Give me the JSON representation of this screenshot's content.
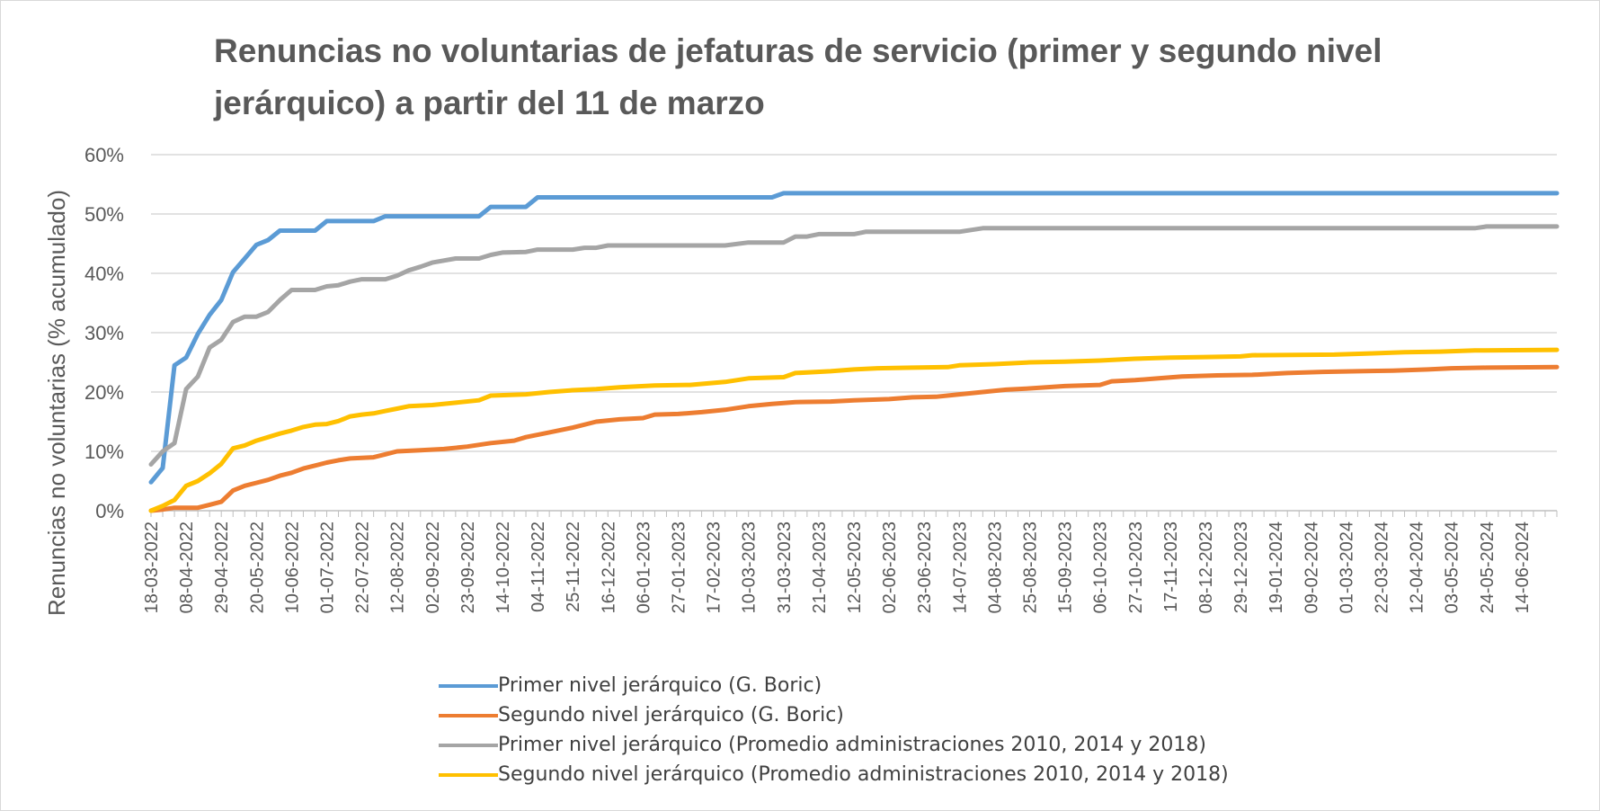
{
  "chart_data": {
    "type": "line",
    "title": "Renuncias no voluntarias de jefaturas de servicio (primer y segundo nivel jerárquico) a partir del 11 de marzo",
    "xlabel": "",
    "ylabel": "Renuncias no voluntarias (% acumulado)",
    "ylim": [
      0,
      0.6
    ],
    "y_ticks": [
      "0%",
      "10%",
      "20%",
      "30%",
      "40%",
      "50%",
      "60%"
    ],
    "x_tick_labels": [
      "18-03-2022",
      "08-04-2022",
      "29-04-2022",
      "20-05-2022",
      "10-06-2022",
      "01-07-2022",
      "22-07-2022",
      "12-08-2022",
      "02-09-2022",
      "23-09-2022",
      "14-10-2022",
      "04-11-2022",
      "25-11-2022",
      "16-12-2022",
      "06-01-2023",
      "27-01-2023",
      "17-02-2023",
      "10-03-2023",
      "31-03-2023",
      "21-04-2023",
      "12-05-2023",
      "02-06-2023",
      "23-06-2023",
      "14-07-2023",
      "04-08-2023",
      "25-08-2023",
      "15-09-2023",
      "06-10-2023",
      "27-10-2023",
      "17-11-2023",
      "08-12-2023",
      "29-12-2023",
      "19-01-2024",
      "09-02-2024",
      "01-03-2024",
      "22-03-2024",
      "12-04-2024",
      "03-05-2024",
      "24-05-2024",
      "14-06-2024"
    ],
    "x_tick_dates": [
      "2022-03-18",
      "2022-04-08",
      "2022-04-29",
      "2022-05-20",
      "2022-06-10",
      "2022-07-01",
      "2022-07-22",
      "2022-08-12",
      "2022-09-02",
      "2022-09-23",
      "2022-10-14",
      "2022-11-04",
      "2022-11-25",
      "2022-12-16",
      "2023-01-06",
      "2023-01-27",
      "2023-02-17",
      "2023-03-10",
      "2023-03-31",
      "2023-04-21",
      "2023-05-12",
      "2023-06-02",
      "2023-06-23",
      "2023-07-14",
      "2023-08-04",
      "2023-08-25",
      "2023-09-15",
      "2023-10-06",
      "2023-10-27",
      "2023-11-17",
      "2023-12-08",
      "2023-12-29",
      "2024-01-19",
      "2024-02-09",
      "2024-03-01",
      "2024-03-22",
      "2024-04-12",
      "2024-05-03",
      "2024-05-24",
      "2024-06-14"
    ],
    "x_range": [
      "2022-03-18",
      "2024-07-05"
    ],
    "grid": true,
    "legend_position": "bottom",
    "series": [
      {
        "name": "Primer nivel jerárquico (G. Boric)",
        "color": "#5B9BD5",
        "points": [
          [
            "2022-03-18",
            0.048
          ],
          [
            "2022-03-25",
            0.072
          ],
          [
            "2022-04-01",
            0.245
          ],
          [
            "2022-04-08",
            0.258
          ],
          [
            "2022-04-15",
            0.298
          ],
          [
            "2022-04-22",
            0.33
          ],
          [
            "2022-04-29",
            0.355
          ],
          [
            "2022-05-06",
            0.402
          ],
          [
            "2022-05-13",
            0.425
          ],
          [
            "2022-05-20",
            0.448
          ],
          [
            "2022-05-27",
            0.456
          ],
          [
            "2022-06-03",
            0.472
          ],
          [
            "2022-06-24",
            0.472
          ],
          [
            "2022-07-01",
            0.488
          ],
          [
            "2022-07-29",
            0.488
          ],
          [
            "2022-08-05",
            0.496
          ],
          [
            "2022-09-30",
            0.496
          ],
          [
            "2022-10-07",
            0.512
          ],
          [
            "2022-10-28",
            0.512
          ],
          [
            "2022-11-04",
            0.528
          ],
          [
            "2023-03-24",
            0.528
          ],
          [
            "2023-03-31",
            0.535
          ],
          [
            "2024-07-05",
            0.535
          ]
        ]
      },
      {
        "name": "Segundo nivel jerárquico (G. Boric)",
        "color": "#ED7D31",
        "points": [
          [
            "2022-03-18",
            0.0
          ],
          [
            "2022-03-25",
            0.002
          ],
          [
            "2022-04-01",
            0.005
          ],
          [
            "2022-04-15",
            0.005
          ],
          [
            "2022-04-22",
            0.01
          ],
          [
            "2022-04-29",
            0.015
          ],
          [
            "2022-05-06",
            0.034
          ],
          [
            "2022-05-13",
            0.042
          ],
          [
            "2022-05-20",
            0.047
          ],
          [
            "2022-05-27",
            0.052
          ],
          [
            "2022-06-03",
            0.059
          ],
          [
            "2022-06-10",
            0.064
          ],
          [
            "2022-06-17",
            0.071
          ],
          [
            "2022-06-24",
            0.076
          ],
          [
            "2022-07-01",
            0.081
          ],
          [
            "2022-07-08",
            0.085
          ],
          [
            "2022-07-15",
            0.088
          ],
          [
            "2022-07-29",
            0.09
          ],
          [
            "2022-08-05",
            0.095
          ],
          [
            "2022-08-12",
            0.1
          ],
          [
            "2022-08-26",
            0.102
          ],
          [
            "2022-09-09",
            0.104
          ],
          [
            "2022-09-23",
            0.108
          ],
          [
            "2022-10-07",
            0.114
          ],
          [
            "2022-10-21",
            0.118
          ],
          [
            "2022-10-28",
            0.124
          ],
          [
            "2022-11-11",
            0.132
          ],
          [
            "2022-11-25",
            0.14
          ],
          [
            "2022-12-09",
            0.15
          ],
          [
            "2022-12-23",
            0.154
          ],
          [
            "2023-01-06",
            0.156
          ],
          [
            "2023-01-13",
            0.162
          ],
          [
            "2023-01-27",
            0.163
          ],
          [
            "2023-02-10",
            0.166
          ],
          [
            "2023-02-24",
            0.17
          ],
          [
            "2023-03-10",
            0.176
          ],
          [
            "2023-03-24",
            0.18
          ],
          [
            "2023-04-07",
            0.183
          ],
          [
            "2023-04-28",
            0.184
          ],
          [
            "2023-05-12",
            0.186
          ],
          [
            "2023-06-02",
            0.188
          ],
          [
            "2023-06-16",
            0.191
          ],
          [
            "2023-06-30",
            0.192
          ],
          [
            "2023-07-14",
            0.196
          ],
          [
            "2023-07-28",
            0.2
          ],
          [
            "2023-08-11",
            0.204
          ],
          [
            "2023-08-25",
            0.206
          ],
          [
            "2023-09-15",
            0.21
          ],
          [
            "2023-10-06",
            0.212
          ],
          [
            "2023-10-13",
            0.218
          ],
          [
            "2023-10-27",
            0.22
          ],
          [
            "2023-11-10",
            0.223
          ],
          [
            "2023-11-24",
            0.226
          ],
          [
            "2023-12-15",
            0.228
          ],
          [
            "2024-01-05",
            0.229
          ],
          [
            "2024-01-26",
            0.232
          ],
          [
            "2024-02-16",
            0.234
          ],
          [
            "2024-03-08",
            0.235
          ],
          [
            "2024-03-29",
            0.236
          ],
          [
            "2024-04-19",
            0.238
          ],
          [
            "2024-05-03",
            0.24
          ],
          [
            "2024-05-24",
            0.241
          ],
          [
            "2024-07-05",
            0.242
          ]
        ]
      },
      {
        "name": "Primer nivel jerárquico (Promedio administraciones 2010, 2014 y 2018)",
        "color": "#A5A5A5",
        "points": [
          [
            "2022-03-18",
            0.078
          ],
          [
            "2022-03-25",
            0.1
          ],
          [
            "2022-04-01",
            0.114
          ],
          [
            "2022-04-08",
            0.205
          ],
          [
            "2022-04-15",
            0.226
          ],
          [
            "2022-04-22",
            0.275
          ],
          [
            "2022-04-29",
            0.288
          ],
          [
            "2022-05-06",
            0.318
          ],
          [
            "2022-05-13",
            0.327
          ],
          [
            "2022-05-20",
            0.327
          ],
          [
            "2022-05-27",
            0.335
          ],
          [
            "2022-06-03",
            0.355
          ],
          [
            "2022-06-10",
            0.372
          ],
          [
            "2022-06-24",
            0.372
          ],
          [
            "2022-07-01",
            0.378
          ],
          [
            "2022-07-08",
            0.38
          ],
          [
            "2022-07-15",
            0.386
          ],
          [
            "2022-07-22",
            0.39
          ],
          [
            "2022-08-05",
            0.39
          ],
          [
            "2022-08-12",
            0.396
          ],
          [
            "2022-08-19",
            0.405
          ],
          [
            "2022-08-26",
            0.411
          ],
          [
            "2022-09-02",
            0.418
          ],
          [
            "2022-09-16",
            0.425
          ],
          [
            "2022-09-30",
            0.425
          ],
          [
            "2022-10-07",
            0.431
          ],
          [
            "2022-10-14",
            0.435
          ],
          [
            "2022-10-28",
            0.436
          ],
          [
            "2022-11-04",
            0.44
          ],
          [
            "2022-11-25",
            0.44
          ],
          [
            "2022-12-02",
            0.443
          ],
          [
            "2022-12-09",
            0.443
          ],
          [
            "2022-12-16",
            0.447
          ],
          [
            "2023-02-24",
            0.447
          ],
          [
            "2023-03-10",
            0.452
          ],
          [
            "2023-03-31",
            0.452
          ],
          [
            "2023-04-07",
            0.462
          ],
          [
            "2023-04-14",
            0.462
          ],
          [
            "2023-04-21",
            0.466
          ],
          [
            "2023-05-12",
            0.466
          ],
          [
            "2023-05-19",
            0.47
          ],
          [
            "2023-07-14",
            0.47
          ],
          [
            "2023-07-21",
            0.473
          ],
          [
            "2023-07-28",
            0.476
          ],
          [
            "2024-05-17",
            0.476
          ],
          [
            "2024-05-24",
            0.479
          ],
          [
            "2024-07-05",
            0.479
          ]
        ]
      },
      {
        "name": "Segundo nivel jerárquico (Promedio administraciones 2010, 2014 y 2018)",
        "color": "#FFC000",
        "points": [
          [
            "2022-03-18",
            0.0
          ],
          [
            "2022-03-25",
            0.008
          ],
          [
            "2022-04-01",
            0.018
          ],
          [
            "2022-04-08",
            0.042
          ],
          [
            "2022-04-15",
            0.05
          ],
          [
            "2022-04-22",
            0.063
          ],
          [
            "2022-04-29",
            0.079
          ],
          [
            "2022-05-06",
            0.105
          ],
          [
            "2022-05-13",
            0.11
          ],
          [
            "2022-05-20",
            0.118
          ],
          [
            "2022-05-27",
            0.124
          ],
          [
            "2022-06-03",
            0.13
          ],
          [
            "2022-06-10",
            0.135
          ],
          [
            "2022-06-17",
            0.141
          ],
          [
            "2022-06-24",
            0.145
          ],
          [
            "2022-07-01",
            0.146
          ],
          [
            "2022-07-08",
            0.151
          ],
          [
            "2022-07-15",
            0.159
          ],
          [
            "2022-07-22",
            0.162
          ],
          [
            "2022-07-29",
            0.164
          ],
          [
            "2022-08-05",
            0.168
          ],
          [
            "2022-08-12",
            0.172
          ],
          [
            "2022-08-19",
            0.176
          ],
          [
            "2022-09-02",
            0.178
          ],
          [
            "2022-09-16",
            0.182
          ],
          [
            "2022-09-30",
            0.186
          ],
          [
            "2022-10-07",
            0.194
          ],
          [
            "2022-10-28",
            0.196
          ],
          [
            "2022-11-11",
            0.2
          ],
          [
            "2022-11-25",
            0.203
          ],
          [
            "2022-12-09",
            0.205
          ],
          [
            "2022-12-23",
            0.208
          ],
          [
            "2023-01-13",
            0.211
          ],
          [
            "2023-02-03",
            0.212
          ],
          [
            "2023-02-24",
            0.217
          ],
          [
            "2023-03-10",
            0.223
          ],
          [
            "2023-03-31",
            0.225
          ],
          [
            "2023-04-07",
            0.232
          ],
          [
            "2023-04-28",
            0.235
          ],
          [
            "2023-05-12",
            0.238
          ],
          [
            "2023-05-26",
            0.24
          ],
          [
            "2023-06-16",
            0.241
          ],
          [
            "2023-07-07",
            0.242
          ],
          [
            "2023-07-14",
            0.245
          ],
          [
            "2023-08-04",
            0.247
          ],
          [
            "2023-08-25",
            0.25
          ],
          [
            "2023-09-15",
            0.251
          ],
          [
            "2023-10-06",
            0.253
          ],
          [
            "2023-10-27",
            0.256
          ],
          [
            "2023-11-17",
            0.258
          ],
          [
            "2023-12-08",
            0.259
          ],
          [
            "2023-12-29",
            0.26
          ],
          [
            "2024-01-05",
            0.262
          ],
          [
            "2024-02-23",
            0.263
          ],
          [
            "2024-03-15",
            0.265
          ],
          [
            "2024-04-05",
            0.267
          ],
          [
            "2024-04-26",
            0.268
          ],
          [
            "2024-05-17",
            0.27
          ],
          [
            "2024-07-05",
            0.271
          ]
        ]
      }
    ]
  }
}
